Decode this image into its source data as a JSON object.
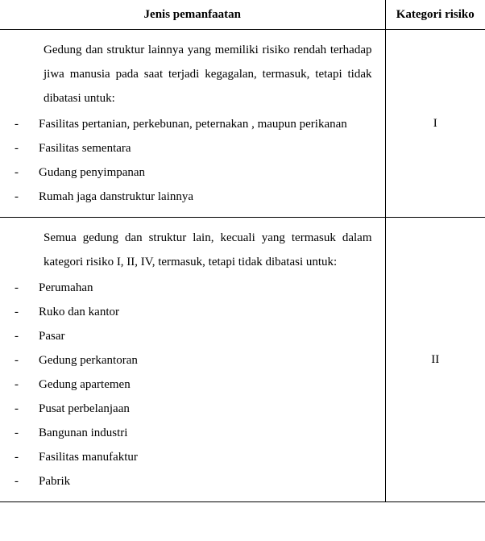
{
  "header": {
    "col1": "Jenis pemanfaatan",
    "col2": "Kategori risiko"
  },
  "rows": [
    {
      "intro": "Gedung dan struktur lainnya yang memiliki risiko rendah terhadap jiwa manusia pada saat terjadi kegagalan, termasuk, tetapi tidak dibatasi untuk:",
      "items": [
        "Fasilitas pertanian, perkebunan, peternakan , maupun perikanan",
        "Fasilitas sementara",
        "Gudang penyimpanan",
        "Rumah jaga danstruktur lainnya"
      ],
      "category": "I"
    },
    {
      "intro": "Semua gedung dan struktur lain, kecuali yang termasuk dalam kategori risiko I, II, IV, termasuk, tetapi tidak dibatasi untuk:",
      "items": [
        "Perumahan",
        "Ruko dan kantor",
        "Pasar",
        "Gedung perkantoran",
        "Gedung apartemen",
        "Pusat perbelanjaan",
        "Bangunan industri",
        "Fasilitas manufaktur",
        "Pabrik"
      ],
      "category": "II"
    }
  ]
}
